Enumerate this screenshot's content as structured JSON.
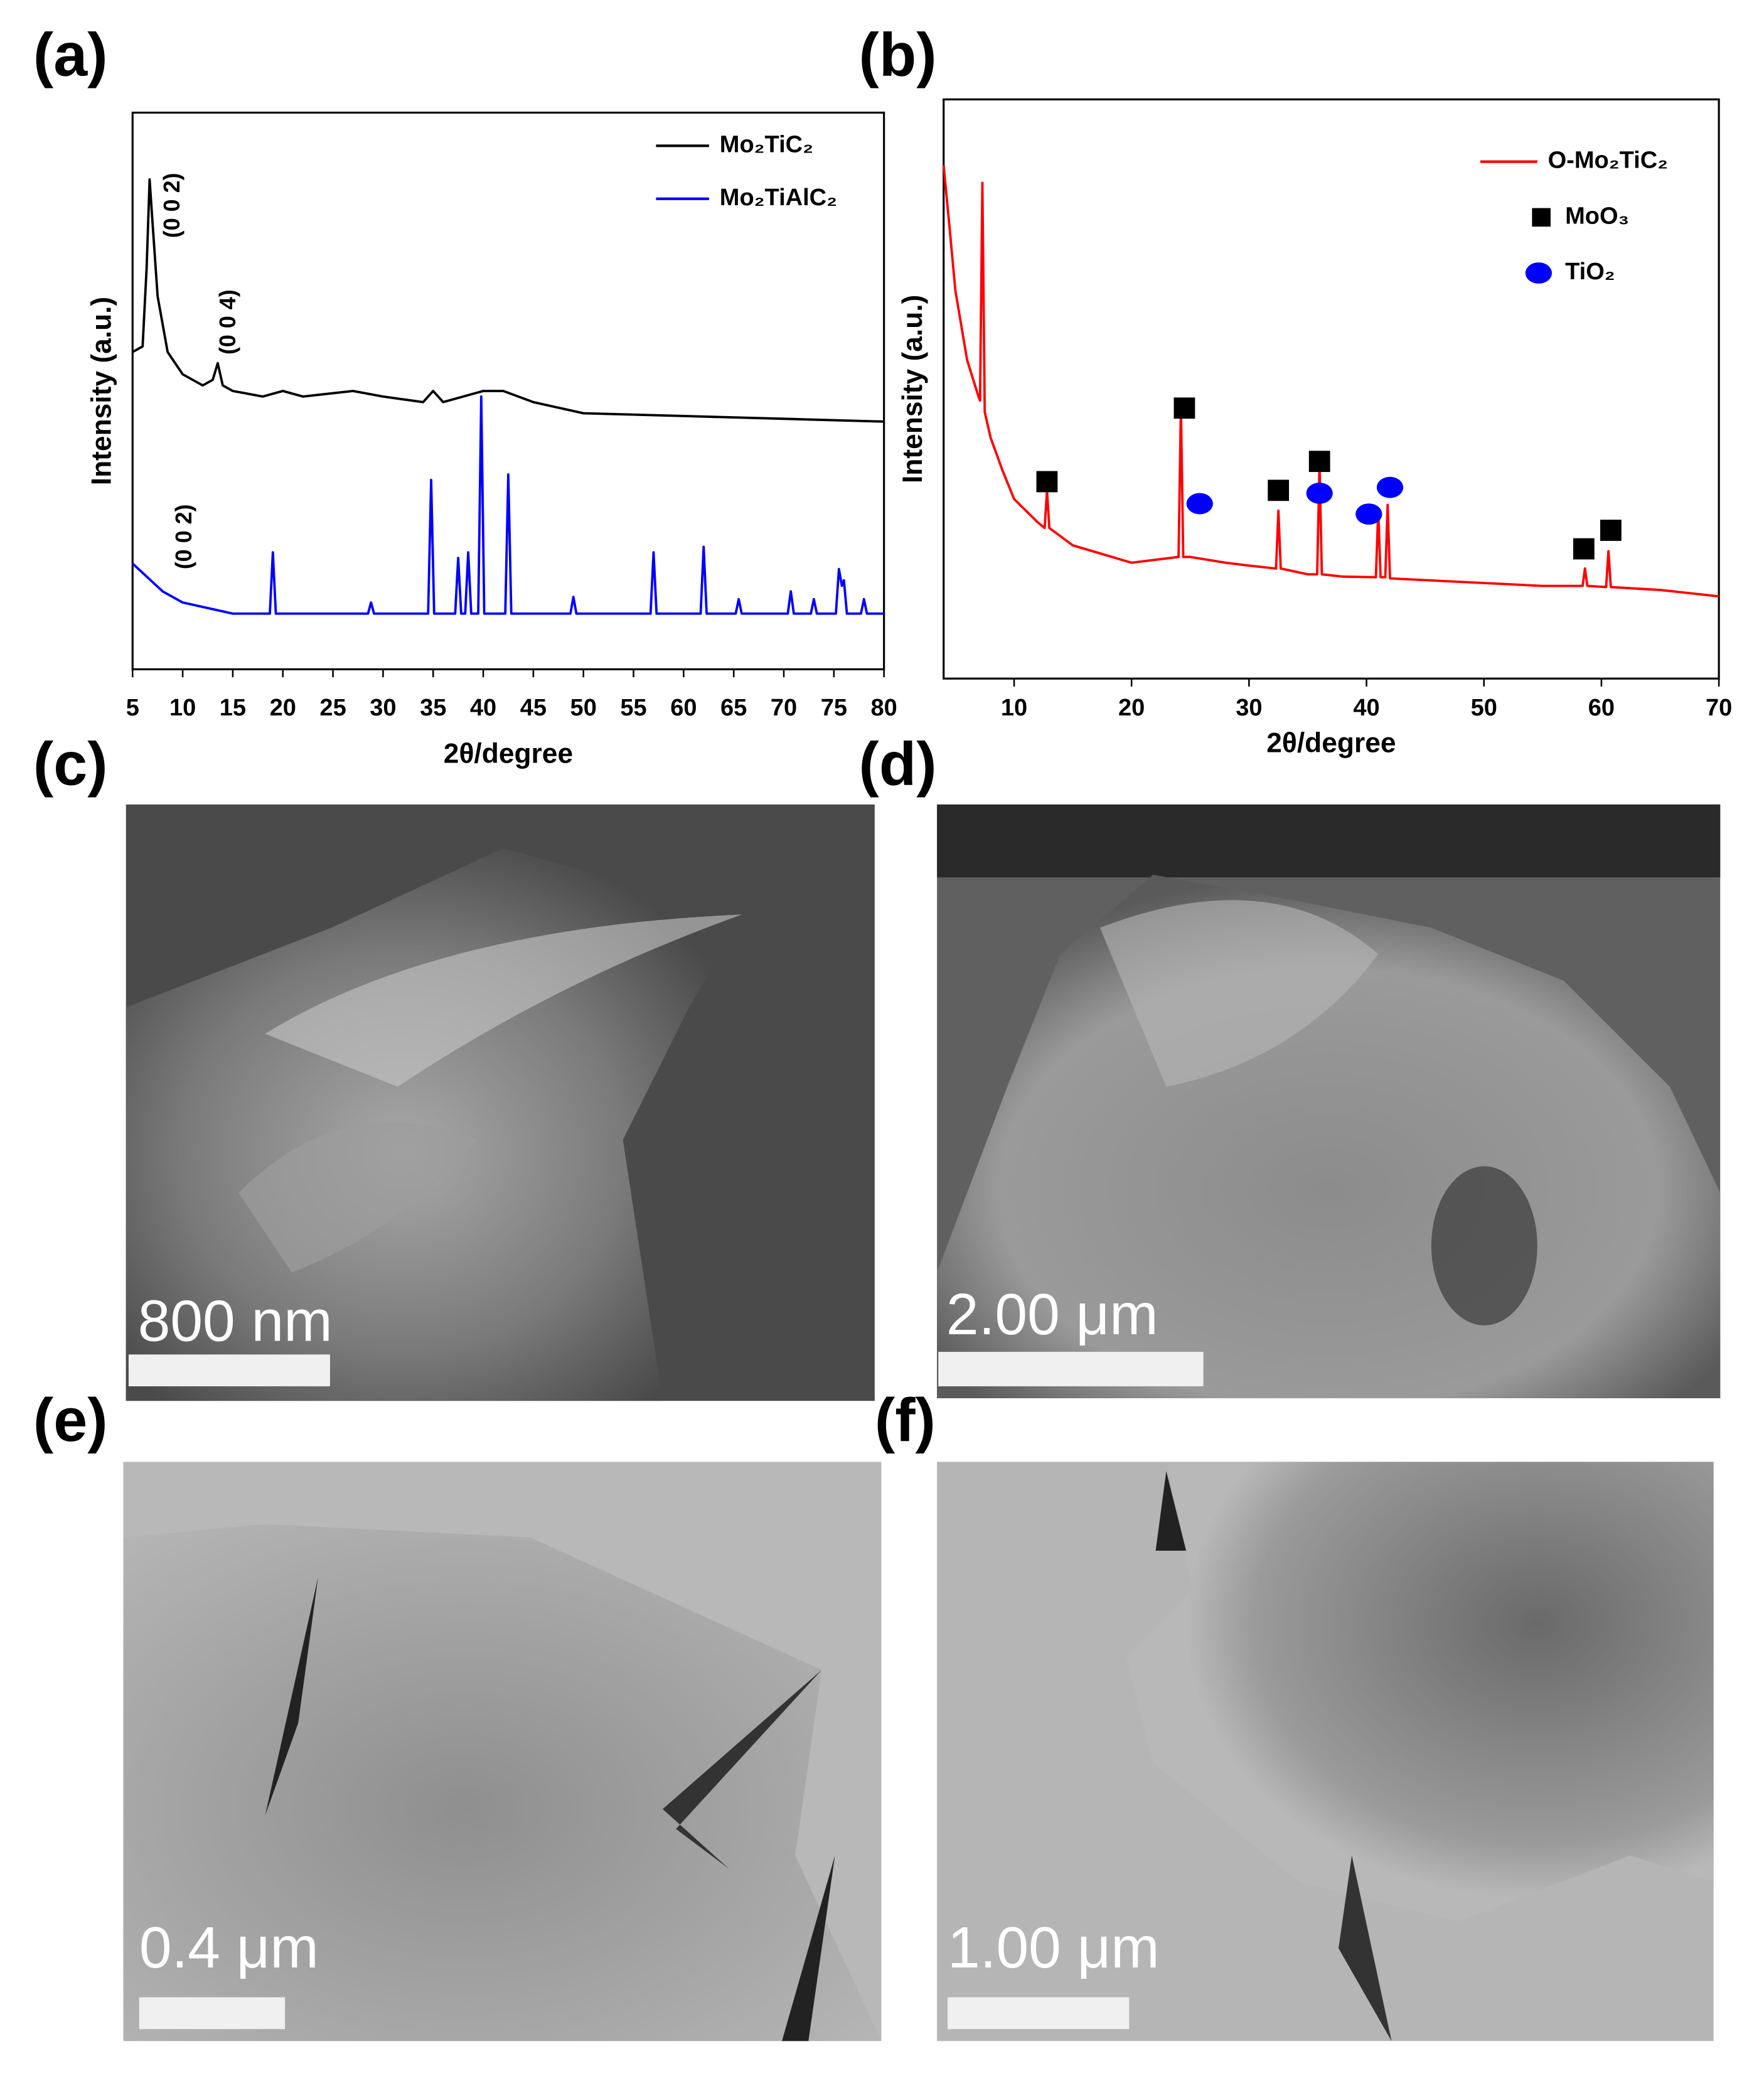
{
  "chart_data": [
    {
      "type": "line",
      "xlabel": "2θ/degree",
      "ylabel": "Intensity (a.u.)",
      "xlim": [
        5,
        80
      ],
      "xticks": [
        5,
        10,
        15,
        20,
        25,
        30,
        35,
        40,
        45,
        50,
        55,
        60,
        65,
        70,
        75,
        80
      ],
      "ylim": [
        0,
        100
      ],
      "legend": "upper right",
      "annotations": [
        "(0 0 2)",
        "(0 0 4)",
        "(0 0 2)"
      ],
      "series": [
        {
          "name": "Mo₂TiC₂",
          "color": "#000000",
          "x": [
            5,
            6,
            6.4,
            6.7,
            7,
            7.5,
            8.5,
            10,
            12,
            13,
            13.5,
            14,
            15,
            18,
            20,
            22,
            27,
            30,
            34,
            35,
            36,
            40,
            42,
            45,
            50,
            60,
            70,
            80
          ],
          "values": [
            57,
            58,
            72,
            88,
            80,
            67,
            57,
            53,
            51,
            52,
            55,
            51,
            50,
            49,
            50,
            49,
            50,
            49,
            48,
            50,
            48,
            50,
            50,
            48,
            46,
            45.5,
            45,
            44.5
          ]
        },
        {
          "name": "Mo₂TiAlC₂",
          "color": "#0000ff",
          "x": [
            5,
            8,
            10,
            15,
            18.7,
            19,
            19.3,
            28.5,
            28.8,
            29.1,
            34.5,
            34.8,
            35.1,
            37.2,
            37.5,
            37.8,
            38.2,
            38.5,
            38.8,
            39.5,
            39.8,
            40.1,
            42.2,
            42.5,
            42.8,
            48.7,
            49,
            49.3,
            56.7,
            57,
            57.3,
            61.7,
            62,
            62.3,
            65.2,
            65.5,
            65.8,
            70.4,
            70.7,
            71,
            72.7,
            73,
            73.3,
            75.2,
            75.5,
            75.8,
            76,
            76.3,
            77.7,
            78,
            78.3,
            80
          ],
          "values": [
            19,
            14,
            12,
            10,
            10,
            21,
            10,
            10,
            12,
            10,
            10,
            34,
            10,
            10,
            20,
            10,
            10,
            21,
            10,
            10,
            49,
            10,
            10,
            35,
            10,
            10,
            13,
            10,
            10,
            21,
            10,
            10,
            22,
            10,
            10,
            12.6,
            10,
            10,
            14,
            10,
            10,
            12.6,
            10,
            10,
            18,
            15,
            16,
            10,
            10,
            12.6,
            10,
            10
          ]
        }
      ]
    },
    {
      "type": "line",
      "xlabel": "2θ/degree",
      "ylabel": "Intensity (a.u.)",
      "xlim": [
        4,
        70
      ],
      "xticks": [
        10,
        20,
        30,
        40,
        50,
        60,
        70
      ],
      "ylim": [
        0,
        100
      ],
      "legend": "upper right",
      "series": [
        {
          "name": "O-Mo₂TiC₂",
          "color": "#ff0000",
          "x": [
            4,
            4.5,
            5,
            6,
            7,
            7.1,
            7.3,
            7.5,
            8,
            9,
            10,
            12,
            12.6,
            12.8,
            13,
            15,
            20,
            24,
            24.2,
            24.4,
            25,
            28,
            30,
            32.3,
            32.5,
            32.7,
            35,
            35.8,
            36,
            36.2,
            38,
            40.8,
            41,
            41.2,
            41.6,
            41.8,
            42,
            45,
            50,
            55,
            58.4,
            58.6,
            58.8,
            60.4,
            60.6,
            60.8,
            65,
            70
          ],
          "values": [
            88.6,
            78,
            67,
            55,
            48.5,
            48,
            85.6,
            46,
            41.6,
            36,
            31,
            27,
            26,
            32.5,
            26,
            23,
            20,
            21,
            47,
            21,
            21,
            20,
            19.5,
            19,
            29,
            19,
            18,
            18,
            37,
            18,
            17.6,
            17.5,
            29,
            17.5,
            17.5,
            30,
            17.3,
            17,
            16.5,
            16,
            16,
            19,
            16,
            15.8,
            22,
            15.8,
            15.3,
            14.2
          ]
        },
        {
          "name": "MoO₃",
          "color": "#000000",
          "marker": "square",
          "x": [
            12.8,
            24.5,
            32.5,
            36,
            58.5,
            60.8
          ],
          "values": [
            34,
            46.7,
            32.5,
            37.5,
            22.4,
            25.6
          ]
        },
        {
          "name": "TiO₂",
          "color": "#0000ff",
          "marker": "circle",
          "x": [
            25.8,
            36,
            40.2,
            42
          ],
          "values": [
            30.2,
            32,
            28.4,
            33
          ]
        }
      ]
    }
  ],
  "panels": {
    "labels": [
      "(a)",
      "(b)",
      "(c)",
      "(d)",
      "(e)",
      "(f)"
    ],
    "images": [
      {
        "scale_bar": "800 nm"
      },
      {
        "scale_bar": "2.00 μm"
      },
      {
        "scale_bar": "0.4 μm"
      },
      {
        "scale_bar": "1.00 μm"
      }
    ]
  }
}
